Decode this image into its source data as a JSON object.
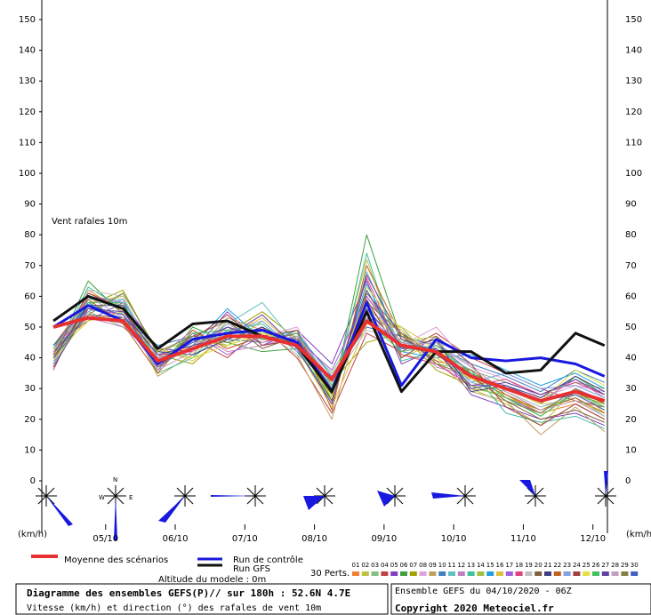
{
  "chart_data": {
    "type": "line",
    "annotation": "Vent rafales 10m",
    "y_unit": "(km/h)",
    "x": [
      0,
      12,
      24,
      36,
      48,
      60,
      72,
      84,
      96,
      108,
      120,
      132,
      144,
      156,
      168,
      180,
      190
    ],
    "xlim": [
      -4,
      191
    ],
    "xticks": [
      {
        "value": 18,
        "label": "05/10"
      },
      {
        "value": 42,
        "label": "06/10"
      },
      {
        "value": 66,
        "label": "07/10"
      },
      {
        "value": 90,
        "label": "08/10"
      },
      {
        "value": 114,
        "label": "09/10"
      },
      {
        "value": 138,
        "label": "10/10"
      },
      {
        "value": 162,
        "label": "11/10"
      },
      {
        "value": 186,
        "label": "12/10"
      }
    ],
    "ylim": [
      0,
      150
    ],
    "yticks": [
      0,
      10,
      20,
      30,
      40,
      50,
      60,
      70,
      80,
      90,
      100,
      110,
      120,
      130,
      140,
      150
    ],
    "perts_label": "30 Perts.",
    "altitude": "Altitude du modele : 0m",
    "title": "Diagramme des ensembles GEFS(P)// sur 180h : 52.6N 4.7E",
    "subtitle": "Vitesse (km/h) et direction (°) des rafales de vent 10m",
    "run": "Ensemble GEFS du 04/10/2020 - 06Z",
    "copyright": "Copyright 2020 Meteociel.fr",
    "compass": {
      "n": "N",
      "w": "W",
      "e": "E"
    },
    "series": [
      {
        "name": "Moyenne des scénarios",
        "color": "#e83030",
        "values": [
          50,
          53,
          52,
          39,
          43,
          47,
          47,
          44,
          33,
          52,
          44,
          42,
          34,
          30,
          26,
          29,
          26
        ]
      },
      {
        "name": "Run de contrôle",
        "color": "#1818e0",
        "values": [
          50,
          57,
          52,
          38,
          46,
          48,
          49,
          45,
          29,
          58,
          31,
          46,
          40,
          39,
          40,
          38,
          34
        ]
      },
      {
        "name": "Run GFS",
        "color": "#111111",
        "values": [
          52,
          60,
          56,
          43,
          51,
          52,
          47,
          44,
          29,
          55,
          29,
          42,
          42,
          35,
          36,
          48,
          44
        ]
      },
      {
        "name": "01",
        "color": "#f08030",
        "values": [
          38,
          62,
          55,
          40,
          44,
          50,
          46,
          45,
          30,
          60,
          45,
          40,
          33,
          28,
          22,
          25,
          20
        ]
      },
      {
        "name": "02",
        "color": "#c0c040",
        "values": [
          40,
          58,
          60,
          35,
          48,
          44,
          52,
          42,
          28,
          72,
          40,
          45,
          30,
          25,
          18,
          30,
          22
        ]
      },
      {
        "name": "03",
        "color": "#80c080",
        "values": [
          42,
          55,
          50,
          42,
          40,
          52,
          48,
          47,
          35,
          55,
          50,
          38,
          36,
          32,
          28,
          32,
          30
        ]
      },
      {
        "name": "04",
        "color": "#c04040",
        "values": [
          36,
          60,
          56,
          37,
          46,
          40,
          50,
          40,
          22,
          48,
          42,
          48,
          40,
          35,
          30,
          26,
          24
        ]
      },
      {
        "name": "05",
        "color": "#8040c0",
        "values": [
          44,
          52,
          58,
          43,
          42,
          55,
          44,
          49,
          38,
          65,
          38,
          43,
          28,
          24,
          20,
          22,
          18
        ]
      },
      {
        "name": "06",
        "color": "#40a040",
        "values": [
          40,
          65,
          54,
          36,
          50,
          45,
          42,
          43,
          26,
          80,
          46,
          41,
          35,
          30,
          25,
          34,
          28
        ]
      },
      {
        "name": "07",
        "color": "#a0a000",
        "values": [
          38,
          57,
          62,
          41,
          38,
          48,
          55,
          46,
          32,
          45,
          48,
          36,
          31,
          27,
          23,
          28,
          25
        ]
      },
      {
        "name": "08",
        "color": "#e0a0e0",
        "values": [
          41,
          54,
          51,
          39,
          45,
          43,
          47,
          50,
          30,
          58,
          44,
          50,
          37,
          33,
          27,
          31,
          29
        ]
      },
      {
        "name": "09",
        "color": "#c0a060",
        "values": [
          39,
          61,
          57,
          34,
          41,
          53,
          49,
          41,
          20,
          62,
          41,
          39,
          29,
          26,
          15,
          24,
          16
        ]
      },
      {
        "name": "10",
        "color": "#4080c0",
        "values": [
          43,
          56,
          53,
          44,
          47,
          46,
          45,
          48,
          34,
          50,
          47,
          44,
          38,
          34,
          29,
          36,
          32
        ]
      },
      {
        "name": "11",
        "color": "#60c0c0",
        "values": [
          37,
          59,
          59,
          38,
          43,
          51,
          58,
          44,
          25,
          68,
          43,
          46,
          32,
          29,
          24,
          27,
          21
        ]
      },
      {
        "name": "12",
        "color": "#c080c0",
        "values": [
          42,
          53,
          50,
          40,
          49,
          42,
          44,
          47,
          31,
          53,
          49,
          37,
          34,
          31,
          26,
          33,
          27
        ]
      },
      {
        "name": "13",
        "color": "#40c0a0",
        "values": [
          40,
          63,
          56,
          35,
          40,
          49,
          51,
          42,
          27,
          74,
          39,
          42,
          36,
          22,
          19,
          21,
          17
        ]
      },
      {
        "name": "14",
        "color": "#a0c040",
        "values": [
          44,
          55,
          61,
          42,
          46,
          44,
          48,
          45,
          33,
          57,
          45,
          47,
          30,
          28,
          21,
          29,
          23
        ]
      },
      {
        "name": "15",
        "color": "#20a0e0",
        "values": [
          38,
          58,
          52,
          37,
          44,
          56,
          46,
          49,
          29,
          64,
          42,
          40,
          41,
          36,
          31,
          35,
          30
        ]
      },
      {
        "name": "16",
        "color": "#e0c040",
        "values": [
          41,
          52,
          55,
          43,
          39,
          47,
          53,
          43,
          24,
          51,
          50,
          43,
          33,
          30,
          25,
          26,
          22
        ]
      },
      {
        "name": "17",
        "color": "#a060e0",
        "values": [
          39,
          60,
          58,
          36,
          48,
          41,
          47,
          46,
          36,
          60,
          44,
          45,
          35,
          27,
          22,
          30,
          26
        ]
      },
      {
        "name": "18",
        "color": "#e04080",
        "values": [
          43,
          56,
          54,
          41,
          42,
          50,
          45,
          48,
          28,
          66,
          41,
          38,
          31,
          33,
          28,
          32,
          28
        ]
      },
      {
        "name": "19",
        "color": "#c0c0c0",
        "values": [
          37,
          62,
          60,
          39,
          45,
          45,
          49,
          41,
          32,
          49,
          46,
          44,
          37,
          29,
          24,
          28,
          24
        ]
      },
      {
        "name": "20",
        "color": "#806040",
        "values": [
          42,
          54,
          53,
          38,
          47,
          52,
          43,
          47,
          26,
          61,
          48,
          41,
          34,
          26,
          20,
          23,
          19
        ]
      },
      {
        "name": "21",
        "color": "#404080",
        "values": [
          40,
          57,
          57,
          42,
          41,
          46,
          50,
          44,
          30,
          56,
          43,
          46,
          29,
          31,
          27,
          34,
          29
        ]
      },
      {
        "name": "22",
        "color": "#c06020",
        "values": [
          44,
          59,
          51,
          35,
          49,
          43,
          47,
          49,
          23,
          70,
          47,
          39,
          36,
          28,
          23,
          27,
          22
        ]
      },
      {
        "name": "23",
        "color": "#80a0e0",
        "values": [
          38,
          55,
          59,
          40,
          43,
          48,
          52,
          42,
          34,
          53,
          45,
          43,
          32,
          35,
          30,
          31,
          27
        ]
      },
      {
        "name": "24",
        "color": "#a04040",
        "values": [
          41,
          61,
          56,
          37,
          46,
          54,
          44,
          46,
          29,
          59,
          40,
          47,
          38,
          24,
          18,
          25,
          20
        ]
      },
      {
        "name": "25",
        "color": "#e0e040",
        "values": [
          39,
          53,
          52,
          43,
          40,
          44,
          48,
          45,
          27,
          63,
          49,
          40,
          33,
          30,
          26,
          36,
          31
        ]
      },
      {
        "name": "26",
        "color": "#40c060",
        "values": [
          43,
          58,
          58,
          38,
          48,
          49,
          46,
          48,
          31,
          52,
          42,
          44,
          35,
          27,
          21,
          29,
          24
        ]
      },
      {
        "name": "27",
        "color": "#6040a0",
        "values": [
          37,
          56,
          55,
          41,
          44,
          47,
          54,
          43,
          25,
          67,
          46,
          42,
          30,
          32,
          28,
          33,
          28
        ]
      },
      {
        "name": "28",
        "color": "#c0a0c0",
        "values": [
          42,
          60,
          53,
          36,
          42,
          51,
          45,
          47,
          33,
          55,
          44,
          45,
          37,
          29,
          23,
          26,
          21
        ]
      },
      {
        "name": "29",
        "color": "#808040",
        "values": [
          40,
          54,
          61,
          42,
          47,
          45,
          49,
          44,
          28,
          58,
          48,
          38,
          34,
          26,
          22,
          30,
          25
        ]
      },
      {
        "name": "30",
        "color": "#4060c0",
        "values": [
          44,
          57,
          54,
          39,
          45,
          50,
          47,
          46,
          30,
          62,
          43,
          43,
          31,
          31,
          26,
          28,
          23
        ]
      }
    ]
  }
}
